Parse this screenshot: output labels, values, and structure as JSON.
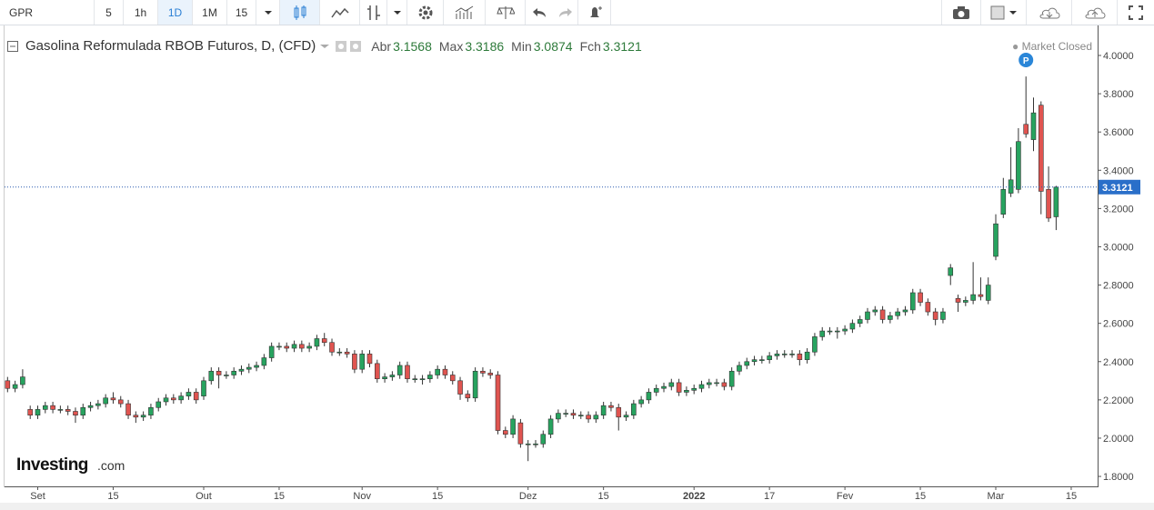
{
  "toolbar": {
    "symbol": "GPR",
    "intervals": [
      "5",
      "1h",
      "1D",
      "1M",
      "15"
    ]
  },
  "chart_data": {
    "type": "candlestick",
    "title": "Gasolina Reformulada RBOB Futuros, D, (CFD)",
    "ohlc_labels": [
      "Abr",
      "Max",
      "Min",
      "Fch"
    ],
    "status": "Market Closed",
    "marker": "P",
    "logo": "Investing",
    "logo_suffix": ".com",
    "up_color": "#27a35f",
    "down_color": "#e05450",
    "open": [
      2.3,
      2.26,
      2.28,
      2.15,
      2.12,
      2.15,
      2.17,
      2.15,
      2.15,
      2.14,
      2.12,
      2.16,
      2.17,
      2.18,
      2.21,
      2.2,
      2.18,
      2.12,
      2.11,
      2.12,
      2.16,
      2.19,
      2.21,
      2.2,
      2.22,
      2.24,
      2.22,
      2.3,
      2.35,
      2.33,
      2.33,
      2.35,
      2.36,
      2.37,
      2.38,
      2.42,
      2.48,
      2.48,
      2.47,
      2.49,
      2.47,
      2.48,
      2.52,
      2.5,
      2.45,
      2.45,
      2.44,
      2.36,
      2.44,
      2.39,
      2.31,
      2.32,
      2.33,
      2.38,
      2.31,
      2.31,
      2.31,
      2.33,
      2.36,
      2.33,
      2.3,
      2.23,
      2.21,
      2.35,
      2.34,
      2.33,
      2.04,
      2.02,
      2.08,
      1.97,
      1.97,
      1.97,
      2.02,
      2.1,
      2.13,
      2.13,
      2.12,
      2.12,
      2.1,
      2.12,
      2.17,
      2.16,
      2.11,
      2.12,
      2.18,
      2.2,
      2.24,
      2.26,
      2.27,
      2.29,
      2.24,
      2.25,
      2.26,
      2.28,
      2.29,
      2.29,
      2.27,
      2.35,
      2.38,
      2.4,
      2.41,
      2.41,
      2.43,
      2.44,
      2.44,
      2.44,
      2.41,
      2.45,
      2.53,
      2.56,
      2.56,
      2.56,
      2.57,
      2.6,
      2.62,
      2.66,
      2.67,
      2.62,
      2.64,
      2.66,
      2.67,
      2.76,
      2.71,
      2.66,
      2.62,
      2.85,
      2.73,
      2.71,
      2.72,
      2.75,
      2.72,
      2.95,
      3.17,
      3.28,
      3.3,
      3.64,
      3.56,
      3.74,
      3.3,
      3.1568
    ],
    "high": [
      2.32,
      2.3,
      2.36,
      2.17,
      2.17,
      2.19,
      2.19,
      2.17,
      2.17,
      2.16,
      2.18,
      2.19,
      2.2,
      2.23,
      2.24,
      2.22,
      2.2,
      2.14,
      2.14,
      2.18,
      2.21,
      2.23,
      2.23,
      2.24,
      2.26,
      2.26,
      2.32,
      2.37,
      2.37,
      2.35,
      2.37,
      2.38,
      2.39,
      2.4,
      2.44,
      2.5,
      2.5,
      2.5,
      2.51,
      2.51,
      2.5,
      2.54,
      2.55,
      2.52,
      2.47,
      2.47,
      2.46,
      2.46,
      2.46,
      2.41,
      2.34,
      2.35,
      2.4,
      2.4,
      2.33,
      2.33,
      2.35,
      2.38,
      2.38,
      2.35,
      2.32,
      2.25,
      2.37,
      2.37,
      2.36,
      2.35,
      2.06,
      2.12,
      2.1,
      1.99,
      1.99,
      2.04,
      2.12,
      2.15,
      2.15,
      2.15,
      2.14,
      2.14,
      2.14,
      2.19,
      2.19,
      2.18,
      2.14,
      2.2,
      2.22,
      2.26,
      2.28,
      2.29,
      2.31,
      2.31,
      2.27,
      2.28,
      2.3,
      2.31,
      2.31,
      2.31,
      2.37,
      2.4,
      2.42,
      2.43,
      2.43,
      2.45,
      2.46,
      2.46,
      2.46,
      2.46,
      2.47,
      2.55,
      2.58,
      2.58,
      2.58,
      2.59,
      2.62,
      2.64,
      2.68,
      2.69,
      2.69,
      2.66,
      2.68,
      2.69,
      2.78,
      2.78,
      2.73,
      2.68,
      2.68,
      2.91,
      2.75,
      2.74,
      2.92,
      2.84,
      2.84,
      3.17,
      3.36,
      3.52,
      3.62,
      3.89,
      3.78,
      3.76,
      3.42,
      3.3186
    ],
    "low": [
      2.24,
      2.24,
      2.26,
      2.1,
      2.1,
      2.13,
      2.13,
      2.13,
      2.12,
      2.08,
      2.1,
      2.14,
      2.15,
      2.16,
      2.18,
      2.16,
      2.1,
      2.08,
      2.09,
      2.1,
      2.14,
      2.17,
      2.18,
      2.18,
      2.2,
      2.18,
      2.2,
      2.28,
      2.26,
      2.31,
      2.31,
      2.33,
      2.34,
      2.35,
      2.36,
      2.4,
      2.46,
      2.45,
      2.45,
      2.45,
      2.45,
      2.46,
      2.48,
      2.43,
      2.43,
      2.42,
      2.34,
      2.34,
      2.37,
      2.29,
      2.29,
      2.3,
      2.31,
      2.29,
      2.29,
      2.28,
      2.29,
      2.31,
      2.31,
      2.28,
      2.2,
      2.19,
      2.19,
      2.32,
      2.31,
      2.02,
      2.0,
      2.0,
      1.95,
      1.88,
      1.95,
      1.95,
      2.0,
      2.08,
      2.11,
      2.1,
      2.1,
      2.08,
      2.08,
      2.1,
      2.14,
      2.04,
      2.09,
      2.1,
      2.16,
      2.18,
      2.22,
      2.24,
      2.25,
      2.22,
      2.22,
      2.23,
      2.24,
      2.26,
      2.27,
      2.25,
      2.25,
      2.33,
      2.36,
      2.38,
      2.39,
      2.39,
      2.41,
      2.42,
      2.42,
      2.38,
      2.39,
      2.43,
      2.51,
      2.54,
      2.52,
      2.54,
      2.55,
      2.58,
      2.6,
      2.64,
      2.6,
      2.6,
      2.62,
      2.64,
      2.65,
      2.69,
      2.64,
      2.59,
      2.6,
      2.8,
      2.66,
      2.69,
      2.7,
      2.72,
      2.7,
      2.93,
      3.15,
      3.26,
      3.28,
      3.57,
      3.5,
      3.17,
      3.13,
      3.0874
    ],
    "close": [
      2.26,
      2.28,
      2.32,
      2.12,
      2.15,
      2.17,
      2.15,
      2.15,
      2.14,
      2.12,
      2.16,
      2.17,
      2.18,
      2.21,
      2.2,
      2.18,
      2.12,
      2.11,
      2.12,
      2.16,
      2.19,
      2.21,
      2.2,
      2.22,
      2.24,
      2.2,
      2.3,
      2.35,
      2.33,
      2.33,
      2.35,
      2.36,
      2.37,
      2.38,
      2.42,
      2.48,
      2.48,
      2.47,
      2.49,
      2.47,
      2.48,
      2.52,
      2.5,
      2.45,
      2.45,
      2.44,
      2.36,
      2.44,
      2.39,
      2.31,
      2.32,
      2.33,
      2.38,
      2.31,
      2.31,
      2.31,
      2.33,
      2.36,
      2.33,
      2.3,
      2.23,
      2.21,
      2.35,
      2.34,
      2.33,
      2.04,
      2.02,
      2.1,
      1.97,
      1.97,
      1.97,
      2.02,
      2.1,
      2.13,
      2.13,
      2.12,
      2.12,
      2.1,
      2.12,
      2.17,
      2.16,
      2.11,
      2.12,
      2.18,
      2.2,
      2.24,
      2.26,
      2.27,
      2.29,
      2.24,
      2.25,
      2.26,
      2.28,
      2.29,
      2.29,
      2.27,
      2.35,
      2.38,
      2.4,
      2.41,
      2.41,
      2.43,
      2.44,
      2.44,
      2.44,
      2.41,
      2.45,
      2.53,
      2.56,
      2.56,
      2.56,
      2.57,
      2.6,
      2.62,
      2.66,
      2.67,
      2.62,
      2.64,
      2.66,
      2.67,
      2.76,
      2.71,
      2.66,
      2.62,
      2.66,
      2.89,
      2.71,
      2.72,
      2.75,
      2.74,
      2.8,
      3.12,
      3.3,
      3.35,
      3.55,
      3.59,
      3.7,
      3.29,
      3.15,
      3.3121
    ],
    "xlim": [
      -0.4,
      144.5
    ],
    "xticks": [
      {
        "value": 4,
        "label": "Set"
      },
      {
        "value": 14,
        "label": "15"
      },
      {
        "value": 26,
        "label": "Out"
      },
      {
        "value": 36,
        "label": "15"
      },
      {
        "value": 47,
        "label": "Nov"
      },
      {
        "value": 57,
        "label": "15"
      },
      {
        "value": 69,
        "label": "Dez"
      },
      {
        "value": 79,
        "label": "15"
      },
      {
        "value": 91,
        "label": "2022"
      },
      {
        "value": 101,
        "label": "17"
      },
      {
        "value": 111,
        "label": "Fev"
      },
      {
        "value": 121,
        "label": "15"
      },
      {
        "value": 131,
        "label": "Mar"
      },
      {
        "value": 141,
        "label": "15"
      }
    ],
    "ylim": [
      1.748,
      4.133
    ],
    "yticks": [
      {
        "value": 1.8,
        "label": "1.8000"
      },
      {
        "value": 2.0,
        "label": "2.0000"
      },
      {
        "value": 2.2,
        "label": "2.2000"
      },
      {
        "value": 2.4,
        "label": "2.4000"
      },
      {
        "value": 2.6,
        "label": "2.6000"
      },
      {
        "value": 2.8,
        "label": "2.8000"
      },
      {
        "value": 3.0,
        "label": "3.0000"
      },
      {
        "value": 3.2,
        "label": "3.2000"
      },
      {
        "value": 3.4,
        "label": "3.4000"
      },
      {
        "value": 3.6,
        "label": "3.6000"
      },
      {
        "value": 3.8,
        "label": "3.8000"
      },
      {
        "value": 4.0,
        "label": "4.0000"
      }
    ]
  }
}
